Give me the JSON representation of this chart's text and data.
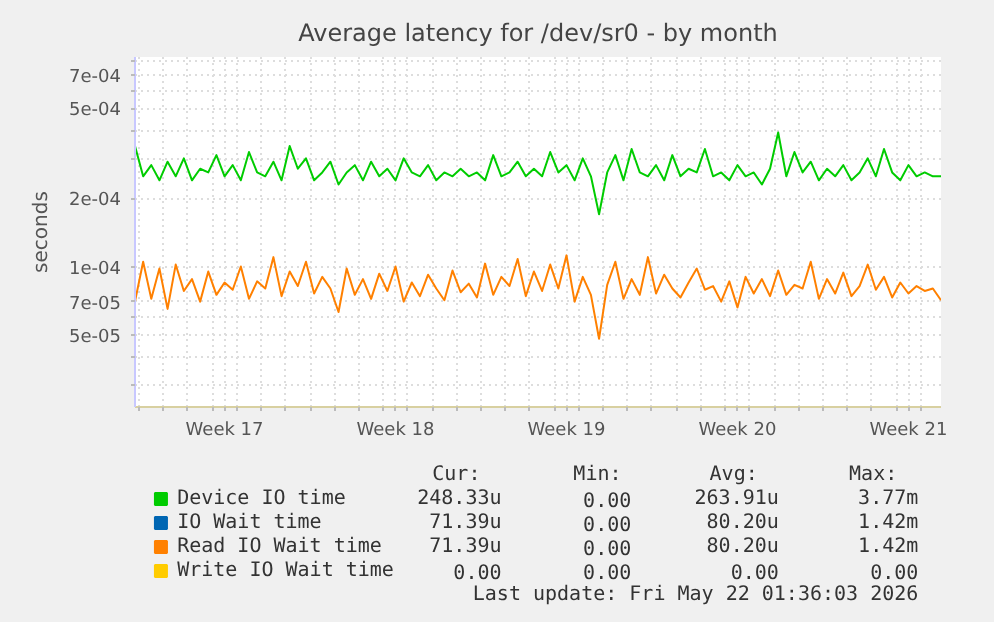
{
  "chart_data": {
    "type": "line",
    "title": "Average latency for /dev/sr0 - by month",
    "ylabel": "seconds",
    "log": true,
    "grid": true,
    "legend": "bottom",
    "xlim": [
      "2026-04-19T20:00",
      "2026-05-22T20:00"
    ],
    "ylim": [
      2.4e-05,
      0.00084
    ],
    "yticks": [
      {
        "value": 3e-05,
        "label": null
      },
      {
        "value": 4e-05,
        "label": null
      },
      {
        "value": 5e-05,
        "label": "5e-05"
      },
      {
        "value": 6e-05,
        "label": null
      },
      {
        "value": 7e-05,
        "label": "7e-05"
      },
      {
        "value": 0.0001,
        "label": "1e-04"
      },
      {
        "value": 0.0002,
        "label": "2e-04"
      },
      {
        "value": 0.0003,
        "label": null
      },
      {
        "value": 0.0004,
        "label": null
      },
      {
        "value": 0.0005,
        "label": "5e-04"
      },
      {
        "value": 0.0006,
        "label": null
      },
      {
        "value": 0.0007,
        "label": "7e-04"
      },
      {
        "value": 0.0008,
        "label": null
      }
    ],
    "xticks": [
      {
        "value": "2026-04-20",
        "label": null
      },
      {
        "value": "2026-04-21",
        "label": null
      },
      {
        "value": "2026-04-22",
        "label": null
      },
      {
        "value": "2026-04-23",
        "label": null
      },
      {
        "value": "2026-04-23T12:00",
        "label": "Week 17"
      },
      {
        "value": "2026-04-24",
        "label": null
      },
      {
        "value": "2026-04-25",
        "label": null
      },
      {
        "value": "2026-04-26",
        "label": null
      },
      {
        "value": "2026-04-27",
        "label": null
      },
      {
        "value": "2026-04-28",
        "label": null
      },
      {
        "value": "2026-04-29",
        "label": null
      },
      {
        "value": "2026-04-30",
        "label": null
      },
      {
        "value": "2026-04-30T12:00",
        "label": "Week 18"
      },
      {
        "value": "2026-05-01",
        "label": null
      },
      {
        "value": "2026-05-02",
        "label": null
      },
      {
        "value": "2026-05-03",
        "label": null
      },
      {
        "value": "2026-05-04",
        "label": null
      },
      {
        "value": "2026-05-05",
        "label": null
      },
      {
        "value": "2026-05-06",
        "label": null
      },
      {
        "value": "2026-05-07",
        "label": null
      },
      {
        "value": "2026-05-07T12:00",
        "label": "Week 19"
      },
      {
        "value": "2026-05-08",
        "label": null
      },
      {
        "value": "2026-05-09",
        "label": null
      },
      {
        "value": "2026-05-10",
        "label": null
      },
      {
        "value": "2026-05-11",
        "label": null
      },
      {
        "value": "2026-05-12",
        "label": null
      },
      {
        "value": "2026-05-13",
        "label": null
      },
      {
        "value": "2026-05-14",
        "label": null
      },
      {
        "value": "2026-05-14T12:00",
        "label": "Week 20"
      },
      {
        "value": "2026-05-15",
        "label": null
      },
      {
        "value": "2026-05-16",
        "label": null
      },
      {
        "value": "2026-05-17",
        "label": null
      },
      {
        "value": "2026-05-18",
        "label": null
      },
      {
        "value": "2026-05-19",
        "label": null
      },
      {
        "value": "2026-05-20",
        "label": null
      },
      {
        "value": "2026-05-21",
        "label": null
      },
      {
        "value": "2026-05-21T12:00",
        "label": "Week 21"
      },
      {
        "value": "2026-05-22",
        "label": null
      }
    ],
    "x": [
      "2026-04-19T20:00",
      "2026-04-20T04:00",
      "2026-04-20T12:00",
      "2026-04-20T20:00",
      "2026-04-21T04:00",
      "2026-04-21T12:00",
      "2026-04-21T20:00",
      "2026-04-22T04:00",
      "2026-04-22T12:00",
      "2026-04-22T20:00",
      "2026-04-23T04:00",
      "2026-04-23T12:00",
      "2026-04-23T20:00",
      "2026-04-24T04:00",
      "2026-04-24T12:00",
      "2026-04-24T20:00",
      "2026-04-25T04:00",
      "2026-04-25T12:00",
      "2026-04-25T20:00",
      "2026-04-26T04:00",
      "2026-04-26T12:00",
      "2026-04-26T20:00",
      "2026-04-27T04:00",
      "2026-04-27T12:00",
      "2026-04-27T20:00",
      "2026-04-28T04:00",
      "2026-04-28T12:00",
      "2026-04-28T20:00",
      "2026-04-29T04:00",
      "2026-04-29T12:00",
      "2026-04-29T20:00",
      "2026-04-30T04:00",
      "2026-04-30T12:00",
      "2026-04-30T20:00",
      "2026-05-01T04:00",
      "2026-05-01T12:00",
      "2026-05-01T20:00",
      "2026-05-02T04:00",
      "2026-05-02T12:00",
      "2026-05-02T20:00",
      "2026-05-03T04:00",
      "2026-05-03T12:00",
      "2026-05-03T20:00",
      "2026-05-04T04:00",
      "2026-05-04T12:00",
      "2026-05-04T20:00",
      "2026-05-05T04:00",
      "2026-05-05T12:00",
      "2026-05-05T20:00",
      "2026-05-06T04:00",
      "2026-05-06T12:00",
      "2026-05-06T20:00",
      "2026-05-07T04:00",
      "2026-05-07T12:00",
      "2026-05-07T20:00",
      "2026-05-08T04:00",
      "2026-05-08T12:00",
      "2026-05-08T20:00",
      "2026-05-09T04:00",
      "2026-05-09T12:00",
      "2026-05-09T20:00",
      "2026-05-10T04:00",
      "2026-05-10T12:00",
      "2026-05-10T20:00",
      "2026-05-11T04:00",
      "2026-05-11T12:00",
      "2026-05-11T20:00",
      "2026-05-12T04:00",
      "2026-05-12T12:00",
      "2026-05-12T20:00",
      "2026-05-13T04:00",
      "2026-05-13T12:00",
      "2026-05-13T20:00",
      "2026-05-14T04:00",
      "2026-05-14T12:00",
      "2026-05-14T20:00",
      "2026-05-15T04:00",
      "2026-05-15T12:00",
      "2026-05-15T20:00",
      "2026-05-16T04:00",
      "2026-05-16T12:00",
      "2026-05-16T20:00",
      "2026-05-17T04:00",
      "2026-05-17T12:00",
      "2026-05-17T20:00",
      "2026-05-18T04:00",
      "2026-05-18T12:00",
      "2026-05-18T20:00",
      "2026-05-19T04:00",
      "2026-05-19T12:00",
      "2026-05-19T20:00",
      "2026-05-20T04:00",
      "2026-05-20T12:00",
      "2026-05-20T20:00",
      "2026-05-21T04:00",
      "2026-05-21T12:00",
      "2026-05-21T20:00",
      "2026-05-22T04:00",
      "2026-05-22T12:00",
      "2026-05-22T20:00"
    ],
    "series": [
      {
        "name": "Device IO time",
        "color": "#00cc00",
        "values": [
          0.00034,
          0.00025,
          0.00028,
          0.00024,
          0.00029,
          0.00025,
          0.0003,
          0.00024,
          0.00027,
          0.00026,
          0.00031,
          0.00025,
          0.00028,
          0.00024,
          0.00032,
          0.00026,
          0.00025,
          0.00029,
          0.00024,
          0.00034,
          0.00027,
          0.0003,
          0.00024,
          0.00026,
          0.00029,
          0.00023,
          0.00026,
          0.00028,
          0.00024,
          0.00029,
          0.00025,
          0.00027,
          0.00024,
          0.0003,
          0.00026,
          0.00025,
          0.00028,
          0.00024,
          0.00026,
          0.00025,
          0.00027,
          0.00025,
          0.00026,
          0.00024,
          0.00031,
          0.00025,
          0.00026,
          0.00029,
          0.00025,
          0.00027,
          0.00025,
          0.00032,
          0.00026,
          0.00028,
          0.00024,
          0.0003,
          0.00025,
          0.00017,
          0.00026,
          0.00031,
          0.00024,
          0.00033,
          0.00026,
          0.00025,
          0.00028,
          0.00024,
          0.00031,
          0.00025,
          0.00027,
          0.00026,
          0.00033,
          0.00025,
          0.00026,
          0.00024,
          0.00028,
          0.00025,
          0.00026,
          0.00023,
          0.00027,
          0.00039,
          0.00025,
          0.00032,
          0.00026,
          0.00029,
          0.00024,
          0.00027,
          0.00025,
          0.00028,
          0.00024,
          0.00026,
          0.0003,
          0.00025,
          0.00033,
          0.00026,
          0.00024,
          0.00028,
          0.00025,
          0.00026,
          0.00025,
          0.00025
        ]
      },
      {
        "name": "IO Wait time",
        "color": "#0066b3",
        "values": [
          null,
          null,
          null,
          null,
          null,
          null,
          null,
          null,
          null,
          null,
          null,
          null,
          null,
          null,
          null,
          null,
          null,
          null,
          null,
          null,
          null,
          null,
          null,
          null,
          null,
          null,
          null,
          null,
          null,
          null,
          null,
          null,
          null,
          null,
          null,
          null,
          null,
          null,
          null,
          null,
          null,
          null,
          null,
          null,
          null,
          null,
          null,
          null,
          null,
          null,
          null,
          null,
          null,
          null,
          null,
          null,
          null,
          null,
          null,
          null,
          null,
          null,
          null,
          null,
          null,
          null,
          null,
          null,
          null,
          null,
          null,
          null,
          null,
          null,
          null,
          null,
          null,
          null,
          null,
          null,
          null,
          null,
          null,
          null,
          null,
          null,
          null,
          null,
          null,
          null,
          null,
          null,
          null,
          null,
          null,
          null,
          null,
          null,
          null,
          null
        ]
      },
      {
        "name": "Read IO Wait time",
        "color": "#ff8000",
        "values": [
          7e-05,
          0.000105,
          7.2e-05,
          9.8e-05,
          6.5e-05,
          0.000102,
          7.8e-05,
          8.8e-05,
          7e-05,
          9.5e-05,
          7.5e-05,
          8.5e-05,
          7.9e-05,
          0.0001,
          7.2e-05,
          8.6e-05,
          8e-05,
          0.00011,
          7.4e-05,
          9.5e-05,
          8.2e-05,
          0.000105,
          7.6e-05,
          9e-05,
          8e-05,
          6.3e-05,
          9.8e-05,
          7.5e-05,
          8.8e-05,
          7.2e-05,
          9.3e-05,
          7.8e-05,
          0.0001,
          7e-05,
          8.5e-05,
          7.4e-05,
          9.2e-05,
          8e-05,
          7.1e-05,
          9.6e-05,
          7.7e-05,
          8.4e-05,
          7.3e-05,
          0.000103,
          7.5e-05,
          9e-05,
          8.2e-05,
          0.000108,
          7.4e-05,
          9.5e-05,
          7.8e-05,
          0.000102,
          8e-05,
          0.000112,
          7e-05,
          9e-05,
          7.5e-05,
          4.8e-05,
          8.3e-05,
          0.000105,
          7.2e-05,
          8.8e-05,
          7.5e-05,
          0.00011,
          7.6e-05,
          9.2e-05,
          8e-05,
          7.3e-05,
          8.5e-05,
          9.8e-05,
          7.9e-05,
          8.2e-05,
          7e-05,
          8.6e-05,
          6.6e-05,
          9e-05,
          7.6e-05,
          8.8e-05,
          7.4e-05,
          9.6e-05,
          7.5e-05,
          8.3e-05,
          8e-05,
          0.000105,
          7.2e-05,
          8.8e-05,
          7.6e-05,
          9.4e-05,
          7.4e-05,
          8.2e-05,
          0.000102,
          7.9e-05,
          9e-05,
          7.3e-05,
          8.5e-05,
          7.6e-05,
          8.2e-05,
          7.8e-05,
          8e-05,
          7.1e-05
        ]
      },
      {
        "name": "Write IO Wait time",
        "color": "#ffcc00",
        "values": [
          null,
          null,
          null,
          null,
          null,
          null,
          null,
          null,
          null,
          null,
          null,
          null,
          null,
          null,
          null,
          null,
          null,
          null,
          null,
          null,
          null,
          null,
          null,
          null,
          null,
          null,
          null,
          null,
          null,
          null,
          null,
          null,
          null,
          null,
          null,
          null,
          null,
          null,
          null,
          null,
          null,
          null,
          null,
          null,
          null,
          null,
          null,
          null,
          null,
          null,
          null,
          null,
          null,
          null,
          null,
          null,
          null,
          null,
          null,
          null,
          null,
          null,
          null,
          null,
          null,
          null,
          null,
          null,
          null,
          null,
          null,
          null,
          null,
          null,
          null,
          null,
          null,
          null,
          null,
          null,
          null,
          null,
          null,
          null,
          null,
          null,
          null,
          null,
          null,
          null,
          null,
          null,
          null,
          null,
          null,
          null,
          null,
          null,
          null,
          null
        ]
      }
    ],
    "annotations": [
      "Cur:",
      "Min:",
      "Avg:",
      "Max:",
      "248.33u",
      "0.00",
      "263.91u",
      "3.77m",
      "71.39u",
      "0.00",
      "80.20u",
      "1.42m",
      "71.39u",
      "0.00",
      "80.20u",
      "1.42m",
      "0.00",
      "0.00",
      "0.00",
      "0.00",
      "Last update: Fri May 22 01:36:03 2026"
    ]
  }
}
